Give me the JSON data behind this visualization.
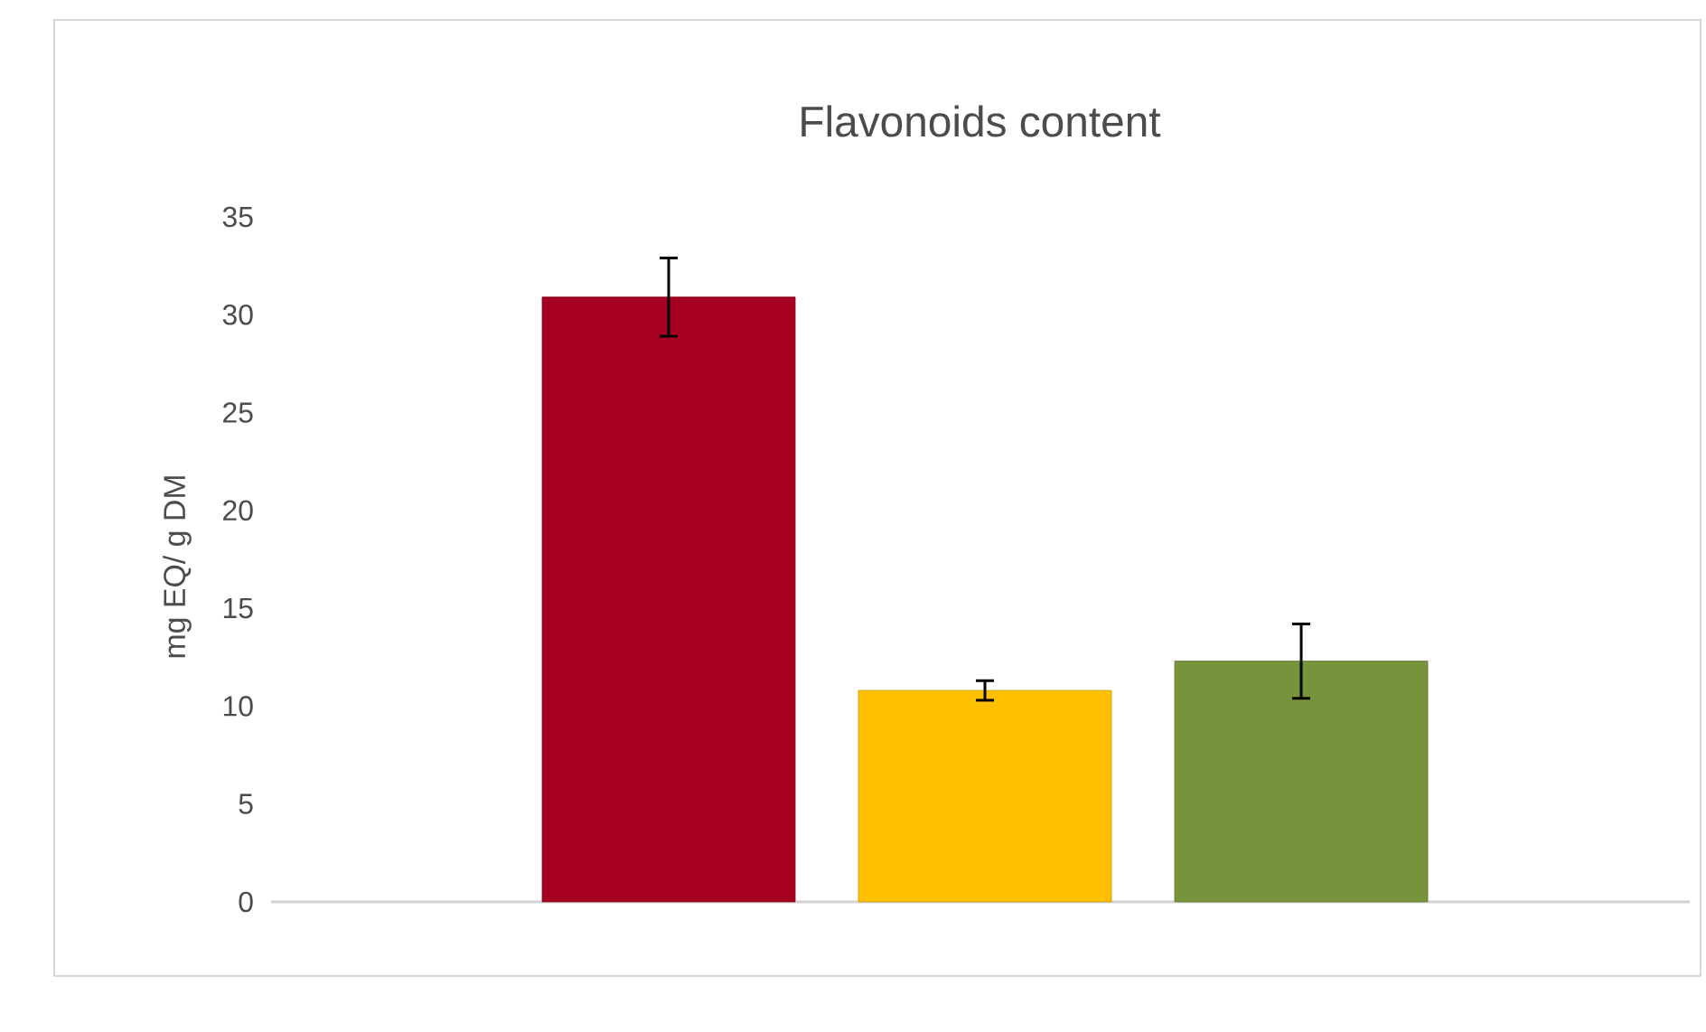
{
  "chart_data": {
    "type": "bar",
    "title": "Flavonoids content",
    "ylabel": "mg EQ/ g DM",
    "categories": [
      null,
      null,
      null
    ],
    "values": [
      30.9,
      10.8,
      12.3
    ],
    "colors": [
      "#a50021",
      "#ffc000",
      "#77933c"
    ],
    "errors": [
      2.0,
      0.5,
      1.9
    ],
    "ylim": [
      0,
      35
    ],
    "yticks": [
      0,
      5,
      10,
      15,
      20,
      25,
      30,
      35
    ]
  }
}
